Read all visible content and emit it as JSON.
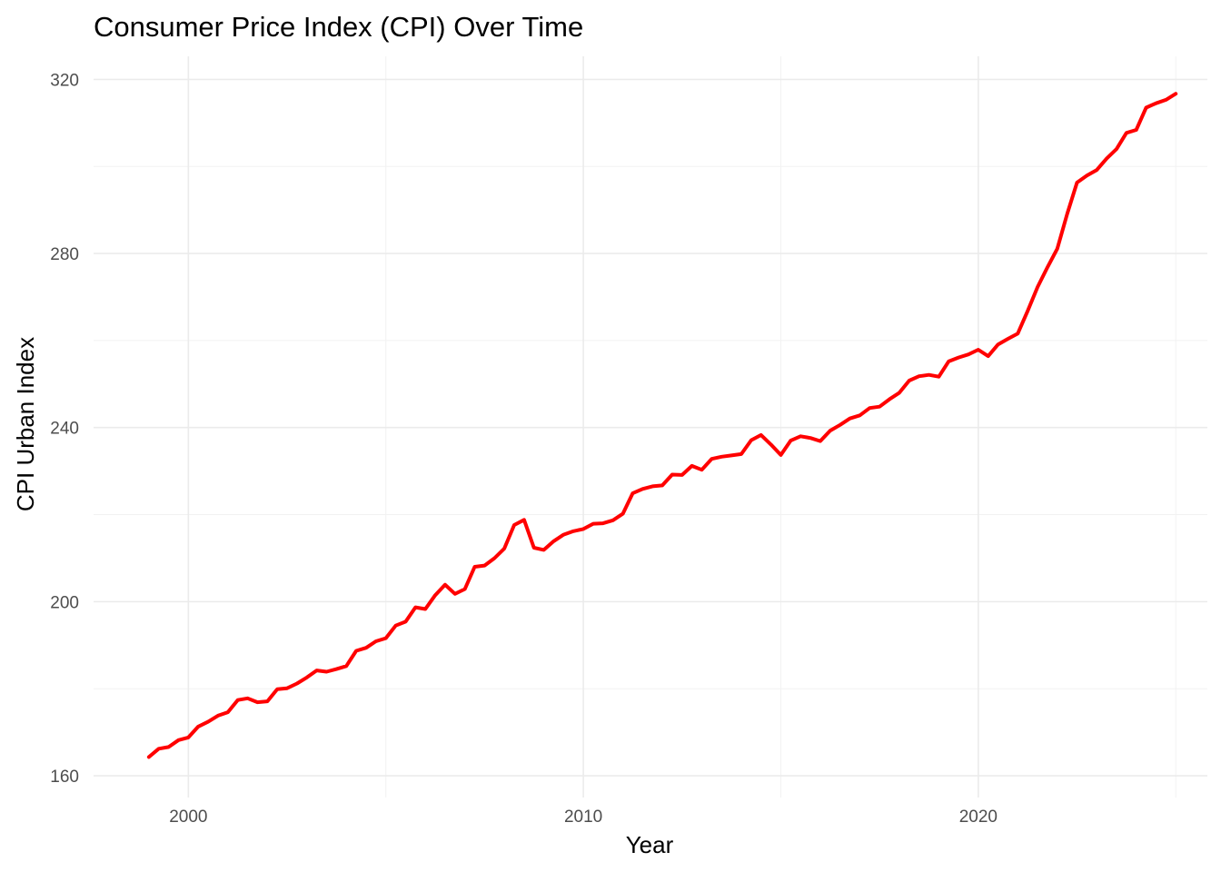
{
  "chart_data": {
    "type": "line",
    "title": "Consumer Price Index (CPI) Over Time",
    "xlabel": "Year",
    "ylabel": "CPI Urban Index",
    "xlim": [
      1997.6,
      2025.8
    ],
    "ylim": [
      155.0,
      325.3
    ],
    "x_ticks": [
      2000,
      2010,
      2020
    ],
    "y_ticks": [
      160,
      200,
      240,
      280,
      320
    ],
    "grid": true,
    "legend": "none",
    "line_color": "#ff0000",
    "series": [
      {
        "x": [
          1999.0,
          1999.25,
          1999.5,
          1999.75,
          2000.0,
          2000.25,
          2000.5,
          2000.75,
          2001.0,
          2001.25,
          2001.5,
          2001.75,
          2002.0,
          2002.25,
          2002.5,
          2002.75,
          2003.0,
          2003.25,
          2003.5,
          2003.75,
          2004.0,
          2004.25,
          2004.5,
          2004.75,
          2005.0,
          2005.25,
          2005.5,
          2005.75,
          2006.0,
          2006.25,
          2006.5,
          2006.75,
          2007.0,
          2007.25,
          2007.5,
          2007.75,
          2008.0,
          2008.25,
          2008.5,
          2008.75,
          2009.0,
          2009.25,
          2009.5,
          2009.75,
          2010.0,
          2010.25,
          2010.5,
          2010.75,
          2011.0,
          2011.25,
          2011.5,
          2011.75,
          2012.0,
          2012.25,
          2012.5,
          2012.75,
          2013.0,
          2013.25,
          2013.5,
          2013.75,
          2014.0,
          2014.25,
          2014.5,
          2014.75,
          2015.0,
          2015.25,
          2015.5,
          2015.75,
          2016.0,
          2016.25,
          2016.5,
          2016.75,
          2017.0,
          2017.25,
          2017.5,
          2017.75,
          2018.0,
          2018.25,
          2018.5,
          2018.75,
          2019.0,
          2019.25,
          2019.5,
          2019.75,
          2020.0,
          2020.25,
          2020.5,
          2020.75,
          2021.0,
          2021.25,
          2021.5,
          2021.75,
          2022.0,
          2022.25,
          2022.5,
          2022.75,
          2023.0,
          2023.25,
          2023.5,
          2023.75,
          2024.0,
          2024.25,
          2024.5,
          2024.75,
          2025.0
        ],
        "values": [
          164.3,
          166.2,
          166.6,
          168.2,
          168.8,
          171.3,
          172.4,
          173.8,
          174.6,
          177.4,
          177.8,
          176.9,
          177.1,
          179.9,
          180.1,
          181.2,
          182.6,
          184.2,
          183.9,
          184.5,
          185.2,
          188.7,
          189.4,
          190.9,
          191.6,
          194.5,
          195.4,
          198.7,
          198.3,
          201.5,
          203.9,
          201.8,
          202.9,
          208.0,
          208.3,
          210.0,
          212.2,
          217.6,
          218.8,
          212.4,
          211.9,
          213.9,
          215.4,
          216.2,
          216.7,
          217.9,
          218.0,
          218.7,
          220.2,
          224.9,
          225.9,
          226.5,
          226.7,
          229.2,
          229.1,
          231.2,
          230.3,
          232.8,
          233.3,
          233.6,
          233.9,
          237.1,
          238.3,
          236.1,
          233.7,
          237.0,
          238.0,
          237.6,
          236.9,
          239.3,
          240.6,
          242.1,
          242.8,
          244.5,
          244.8,
          246.5,
          248.0,
          250.8,
          251.8,
          252.1,
          251.7,
          255.2,
          256.1,
          256.8,
          257.9,
          256.4,
          259.1,
          260.4,
          261.6,
          266.8,
          272.3,
          276.8,
          281.1,
          289.1,
          296.3,
          297.9,
          299.2,
          301.8,
          304.0,
          307.7,
          308.4,
          313.5,
          314.5,
          315.3,
          316.7
        ]
      }
    ]
  }
}
